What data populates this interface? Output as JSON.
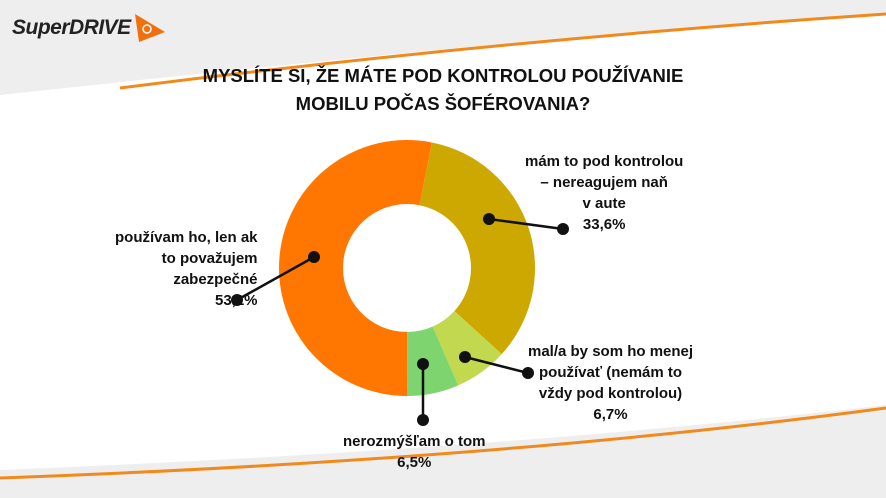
{
  "logo": {
    "text": "SuperDRIVE"
  },
  "chart_data": {
    "type": "pie",
    "subtype": "donut",
    "title": "MYSLÍTE SI, ŽE MÁTE POD KONTROLOU POUŽÍVANIE MOBILU POČAS ŠOFÉROVANIA?",
    "title_lines": [
      "MYSLÍTE SI, ŽE MÁTE POD KONTROLOU POUŽÍVANIE",
      "MOBILU POČAS ŠOFÉROVANIA?"
    ],
    "slices": [
      {
        "label_lines": [
          "mám to pod kontrolou",
          "– nereagujem naň",
          "v aute"
        ],
        "value": 33.6,
        "value_label": "33,6%",
        "color": "#cca800"
      },
      {
        "label_lines": [
          "mal/a by som ho menej",
          "používať (nemám to",
          "vždy pod kontrolou)"
        ],
        "value": 6.7,
        "value_label": "6,7%",
        "color": "#c2d94f"
      },
      {
        "label_lines": [
          "nerozmýšľam o tom"
        ],
        "value": 6.5,
        "value_label": "6,5%",
        "color": "#7ed46e"
      },
      {
        "label_lines": [
          "používam ho, len ak",
          "to považujem",
          "zabezpečné"
        ],
        "value": 53.1,
        "value_label": "53,1%",
        "color": "#ff7700"
      }
    ],
    "legend": "callout labels"
  }
}
